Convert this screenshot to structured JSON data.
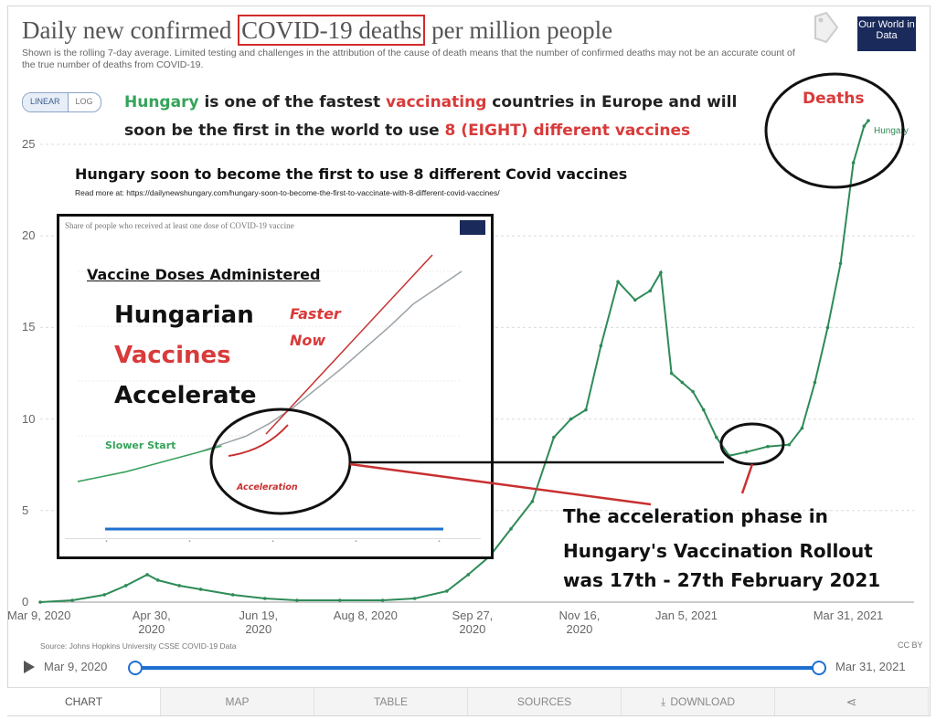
{
  "header": {
    "title_before": "Daily new confirmed",
    "title_boxed": "COVID-19 deaths",
    "title_after": "per million people",
    "subtitle": "Shown is the rolling 7-day average. Limited testing and challenges in the attribution of the cause of death means that the number of confirmed deaths may not be an accurate count of the true number of deaths from COVID-19.",
    "logo_text": "Our World in Data",
    "tag_icon": "tag-icon"
  },
  "scale_toggle": {
    "linear": "LINEAR",
    "log": "LOG"
  },
  "overlay": {
    "headline": [
      {
        "text": "Hungary",
        "color": "#35a35a"
      },
      {
        "text": " is one of the fastest ",
        "color": "#222222"
      },
      {
        "text": "vaccinating",
        "color": "#d93a3a"
      },
      {
        "text": " countries in Europe and will",
        "color": "#222222"
      }
    ],
    "headline2": [
      {
        "text": "soon be the first in the world to use ",
        "color": "#222222"
      },
      {
        "text": "8 (EIGHT) different vaccines",
        "color": "#d93a3a"
      }
    ],
    "deaths_label": "Deaths",
    "subhead": "Hungary soon to become the first to use 8 different Covid vaccines",
    "read_more": "Read more at: https://dailynewshungary.com/hungary-soon-to-become-the-first-to-vaccinate-with-8-different-covid-vaccines/",
    "callout_lines": [
      "The acceleration phase   in",
      "Hungary's Vaccination Rollout",
      "was 17th - 27th February 2021"
    ]
  },
  "inset": {
    "chart_title": "Share of people who received at least one dose of COVID-19 vaccine",
    "heading": "Vaccine Doses Administered",
    "words": [
      "Hungarian",
      "Vaccines",
      "Accelerate"
    ],
    "faster_lines": [
      "Faster",
      "Now"
    ],
    "slower": "Slower Start",
    "acceleration": "Acceleration"
  },
  "footer": {
    "source": "Source: Johns Hopkins University CSSE COVID-19 Data",
    "license": "CC BY",
    "timeline_start": "Mar 9, 2020",
    "timeline_end": "Mar 31, 2021",
    "tabs": [
      {
        "label": "CHART",
        "icon": ""
      },
      {
        "label": "MAP",
        "icon": ""
      },
      {
        "label": "TABLE",
        "icon": ""
      },
      {
        "label": "SOURCES",
        "icon": ""
      },
      {
        "label": "DOWNLOAD",
        "icon": "download-icon"
      },
      {
        "label": "",
        "icon": "share-icon"
      }
    ]
  },
  "chart_data": {
    "type": "line",
    "title": "Daily new confirmed COVID-19 deaths per million people",
    "ylim": [
      0,
      26
    ],
    "yticks": [
      0,
      5,
      10,
      15,
      20,
      25
    ],
    "xticks": [
      "Mar 9, 2020",
      "Apr 30, 2020",
      "Jun 19, 2020",
      "Aug 8, 2020",
      "Sep 27, 2020",
      "Nov 16, 2020",
      "Jan 5, 2021",
      "Mar 31, 2021"
    ],
    "xticks_day": [
      0,
      52,
      102,
      152,
      202,
      252,
      302,
      387
    ],
    "x_range_day": [
      0,
      387
    ],
    "series": [
      {
        "name": "Hungary",
        "color": "#2e8b57",
        "day": [
          0,
          15,
          30,
          40,
          50,
          55,
          65,
          75,
          90,
          105,
          120,
          140,
          160,
          175,
          190,
          200,
          210,
          220,
          230,
          240,
          248,
          255,
          262,
          270,
          278,
          285,
          290,
          295,
          300,
          305,
          310,
          316,
          322,
          330,
          340,
          350,
          356,
          362,
          368,
          374,
          380,
          385,
          387
        ],
        "values": [
          0,
          0.1,
          0.4,
          0.9,
          1.5,
          1.2,
          0.9,
          0.7,
          0.4,
          0.2,
          0.1,
          0.1,
          0.1,
          0.2,
          0.6,
          1.5,
          2.5,
          4.0,
          5.5,
          9.0,
          10.0,
          10.5,
          14.0,
          17.5,
          16.5,
          17.0,
          18.0,
          12.5,
          12.0,
          11.5,
          10.5,
          9.0,
          8.0,
          8.2,
          8.5,
          8.6,
          9.5,
          12.0,
          15.0,
          18.5,
          24.0,
          26.0,
          26.3
        ]
      }
    ],
    "annotation_day": 338
  },
  "inset_chart": {
    "type": "line",
    "series": [
      {
        "name": "",
        "color": "#9aa3a8",
        "values": [
          0,
          0.3,
          0.6,
          1.0,
          1.4,
          1.8,
          2.3,
          2.8,
          3.6,
          4.6,
          5.8,
          7.0,
          8.3,
          9.6,
          11.0,
          12.0,
          13.0
        ]
      },
      {
        "name": "",
        "color": "#35a35a",
        "values": [
          0,
          0.3,
          0.6,
          1.0,
          1.4,
          1.8,
          2.2
        ]
      }
    ],
    "accent_color": "#c83030"
  }
}
